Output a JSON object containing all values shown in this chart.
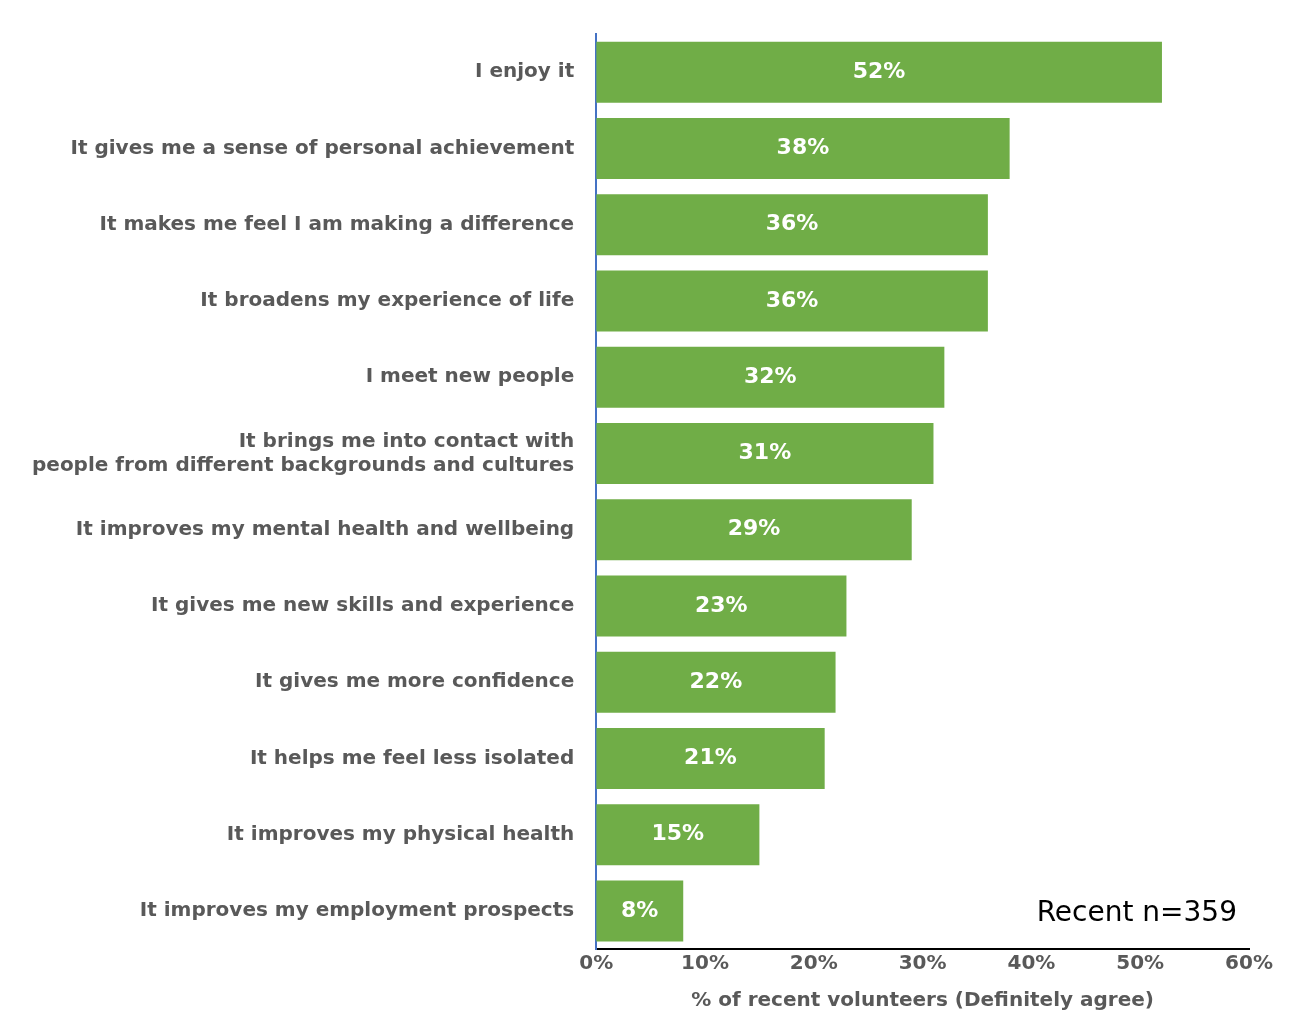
{
  "chart_data": {
    "type": "bar",
    "orientation": "horizontal",
    "xlabel": "% of recent volunteers (Definitely agree)",
    "categories": [
      "I enjoy it",
      "It gives me a sense of personal achievement",
      "It makes me feel I am making a difference",
      "It broadens my experience of life",
      "I meet new people",
      "It brings me into contact with\npeople from different backgrounds and cultures",
      "It improves my mental health and wellbeing",
      "It gives me new skills and experience",
      "It gives me more confidence",
      "It helps me feel less isolated",
      "It improves my physical health",
      "It improves my employment prospects"
    ],
    "values": [
      52,
      38,
      36,
      36,
      32,
      31,
      29,
      23,
      22,
      21,
      15,
      8
    ],
    "value_labels": [
      "52%",
      "38%",
      "36%",
      "36%",
      "32%",
      "31%",
      "29%",
      "23%",
      "22%",
      "21%",
      "15%",
      "8%"
    ],
    "color": "#70ad47",
    "xlim": [
      0,
      60
    ],
    "xticks": [
      {
        "value": 0,
        "label": "0%"
      },
      {
        "value": 10,
        "label": "10%"
      },
      {
        "value": 20,
        "label": "20%"
      },
      {
        "value": 30,
        "label": "30%"
      },
      {
        "value": 40,
        "label": "40%"
      },
      {
        "value": 50,
        "label": "50%"
      },
      {
        "value": 60,
        "label": "60%"
      }
    ],
    "annotations": [
      "Recent n=359"
    ]
  }
}
